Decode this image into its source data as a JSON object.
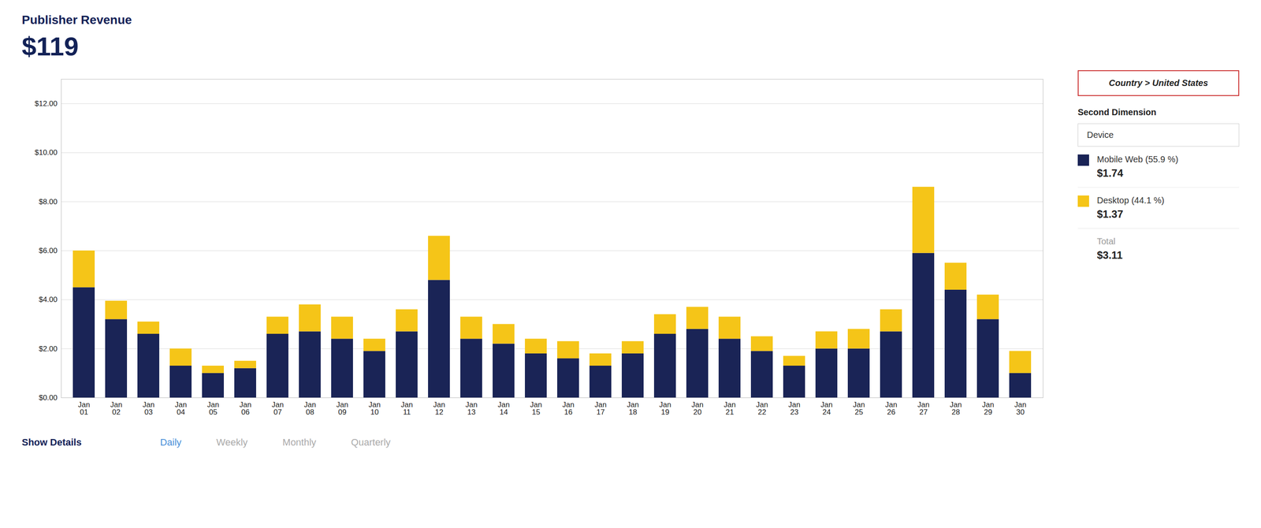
{
  "chart_data": {
    "type": "bar",
    "stacked": true,
    "title": "Publisher Revenue",
    "subtitle": "$119",
    "categories": [
      "Jan 01",
      "Jan 02",
      "Jan 03",
      "Jan 04",
      "Jan 05",
      "Jan 06",
      "Jan 07",
      "Jan 08",
      "Jan 09",
      "Jan 10",
      "Jan 11",
      "Jan 12",
      "Jan 13",
      "Jan 14",
      "Jan 15",
      "Jan 16",
      "Jan 17",
      "Jan 18",
      "Jan 19",
      "Jan 20",
      "Jan 21",
      "Jan 22",
      "Jan 23",
      "Jan 24",
      "Jan 25",
      "Jan 26",
      "Jan 27",
      "Jan 28",
      "Jan 29",
      "Jan 30"
    ],
    "series": [
      {
        "name": "Mobile Web (55.9 %)",
        "color": "#1a2456",
        "values": [
          4.5,
          3.2,
          2.6,
          1.3,
          1.0,
          1.2,
          2.6,
          2.7,
          2.4,
          1.9,
          2.7,
          4.8,
          2.4,
          2.2,
          1.8,
          1.6,
          1.3,
          1.8,
          2.6,
          2.8,
          2.4,
          1.9,
          1.3,
          2.0,
          2.0,
          2.7,
          5.9,
          4.4,
          3.2,
          1.0
        ]
      },
      {
        "name": "Desktop (44.1 %)",
        "color": "#f5c518",
        "values": [
          1.5,
          0.75,
          0.5,
          0.7,
          0.3,
          0.3,
          0.7,
          1.1,
          0.9,
          0.5,
          0.9,
          1.8,
          0.9,
          0.8,
          0.6,
          0.7,
          0.5,
          0.5,
          0.8,
          0.9,
          0.9,
          0.6,
          0.4,
          0.7,
          0.8,
          0.9,
          2.7,
          1.1,
          1.0,
          0.9
        ]
      }
    ],
    "ylim": [
      0,
      13
    ],
    "yticks": [
      {
        "value": 0,
        "label": "$0.00"
      },
      {
        "value": 2,
        "label": "$2.00"
      },
      {
        "value": 4,
        "label": "$4.00"
      },
      {
        "value": 6,
        "label": "$6.00"
      },
      {
        "value": 8,
        "label": "$8.00"
      },
      {
        "value": 10,
        "label": "$10.00"
      },
      {
        "value": 12,
        "label": "$12.00"
      }
    ],
    "grid": true,
    "annotations": [
      "Country > United States",
      "Second Dimension",
      "Device",
      "$1.74",
      "$1.37",
      "Total",
      "$3.11",
      "Show Details",
      "Daily",
      "Weekly",
      "Monthly",
      "Quarterly"
    ]
  }
}
